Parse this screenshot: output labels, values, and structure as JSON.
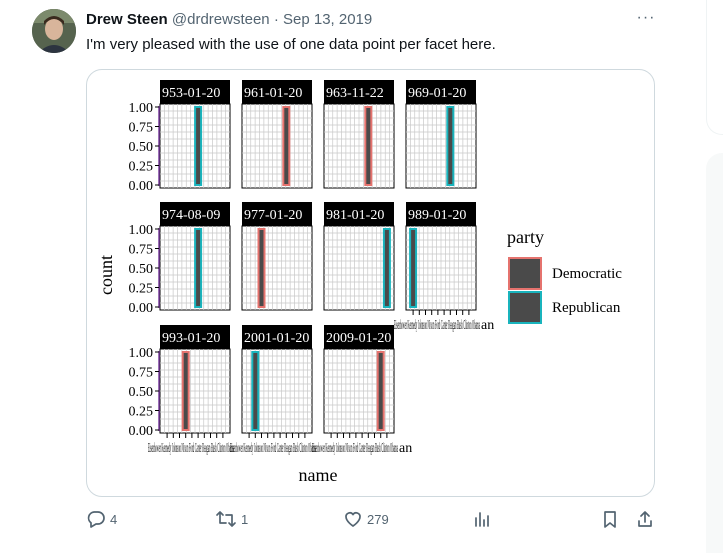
{
  "tweet": {
    "author_name": "Drew Steen",
    "author_handle": "@drdrewsteen",
    "separator": "·",
    "date": "Sep 13, 2019",
    "text": "I'm very pleased with the use of one data point per facet here.",
    "more_label": "···"
  },
  "chart_data": {
    "type": "bar",
    "xlabel": "name",
    "ylabel": "count",
    "y_ticks": [
      "1.00",
      "0.75",
      "0.50",
      "0.25",
      "0.00"
    ],
    "ylim": [
      0,
      1
    ],
    "legend": {
      "title": "party",
      "placement": "right",
      "entries": [
        {
          "name": "Democratic",
          "color": "#e5736e"
        },
        {
          "name": "Republican",
          "color": "#19b4bd"
        }
      ]
    },
    "fill_color": "#4a4a4a",
    "facets": [
      {
        "strip": "953-01-20",
        "party": "Republican",
        "count": 1
      },
      {
        "strip": "961-01-20",
        "party": "Democratic",
        "count": 1
      },
      {
        "strip": "963-11-22",
        "party": "Democratic",
        "count": 1
      },
      {
        "strip": "969-01-20",
        "party": "Republican",
        "count": 1
      },
      {
        "strip": "974-08-09",
        "party": "Republican",
        "count": 1
      },
      {
        "strip": "977-01-20",
        "party": "Democratic",
        "count": 1
      },
      {
        "strip": "981-01-20",
        "party": "Republican",
        "count": 1
      },
      {
        "strip": "989-01-20",
        "party": "Republican",
        "count": 1
      },
      {
        "strip": "993-01-20",
        "party": "Democratic",
        "count": 1
      },
      {
        "strip": "2001-01-20",
        "party": "Republican",
        "count": 1
      },
      {
        "strip": "2009-01-20",
        "party": "Democratic",
        "count": 1
      }
    ],
    "x_tick_label_overlap": "Eisenhower Kennedy Johnson Nixon Ford Carter Reagan Bush Clinton Obama",
    "x_tick_label_tail": "an"
  },
  "actions": {
    "reply_count": "4",
    "retweet_count": "1",
    "like_count": "279"
  }
}
